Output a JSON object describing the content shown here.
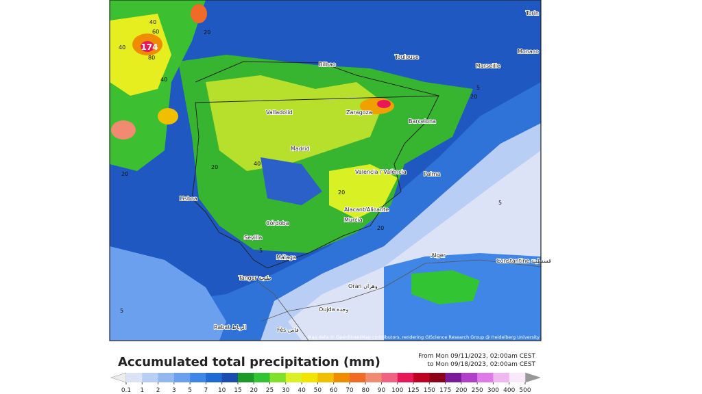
{
  "map": {
    "cities": [
      "Bilbao",
      "Toulouse",
      "Marseille",
      "Monaco",
      "Torin",
      "Valladolid",
      "Zaragoza",
      "Barcelona",
      "Madrid",
      "Valencia / València",
      "Palma",
      "Lisboa",
      "Alacant/Alicante",
      "Murcia",
      "Córdoba",
      "Sevilla",
      "Málaga",
      "Alger",
      "Constantine قسنطينة",
      "Tanger طنجة",
      "Oran وهران",
      "Oujda وجدة",
      "Rabat الرباط",
      "Fès فاس"
    ],
    "max_marker": "174",
    "contour_labels": [
      "40",
      "60",
      "80",
      "40",
      "20",
      "40",
      "20",
      "20",
      "40",
      "20",
      "5",
      "20",
      "5",
      "20",
      "5",
      "5"
    ],
    "attribution": "Map data © OpenStreetMap contributors, rendering GIScience Research Group @ Heidelberg University"
  },
  "legend": {
    "title": "Accumulated total precipitation (mm)",
    "period": [
      "From Mon 09/11/2023, 02:00am CEST",
      "to Mon 09/18/2023, 02:00am CEST"
    ],
    "ticks": [
      0.1,
      1,
      2,
      3,
      5,
      7,
      10,
      15,
      20,
      25,
      30,
      40,
      50,
      60,
      70,
      80,
      90,
      100,
      125,
      150,
      175,
      200,
      250,
      300,
      400,
      500
    ],
    "colors": [
      "#dde3f7",
      "#b8cef4",
      "#93b8ef",
      "#6aa0ee",
      "#3f86e6",
      "#1f69d3",
      "#1b4db0",
      "#1b9a2a",
      "#33c433",
      "#80e02a",
      "#d8f024",
      "#f0e400",
      "#f0c000",
      "#f08c00",
      "#f06a28",
      "#f08a70",
      "#f06282",
      "#e81858",
      "#c00022",
      "#8c0018",
      "#7a1a9a",
      "#b040c8",
      "#e07ae8",
      "#f0b8f0",
      "#f8e8f8"
    ],
    "under_color": "#eeeeee",
    "over_color": "#999999"
  }
}
